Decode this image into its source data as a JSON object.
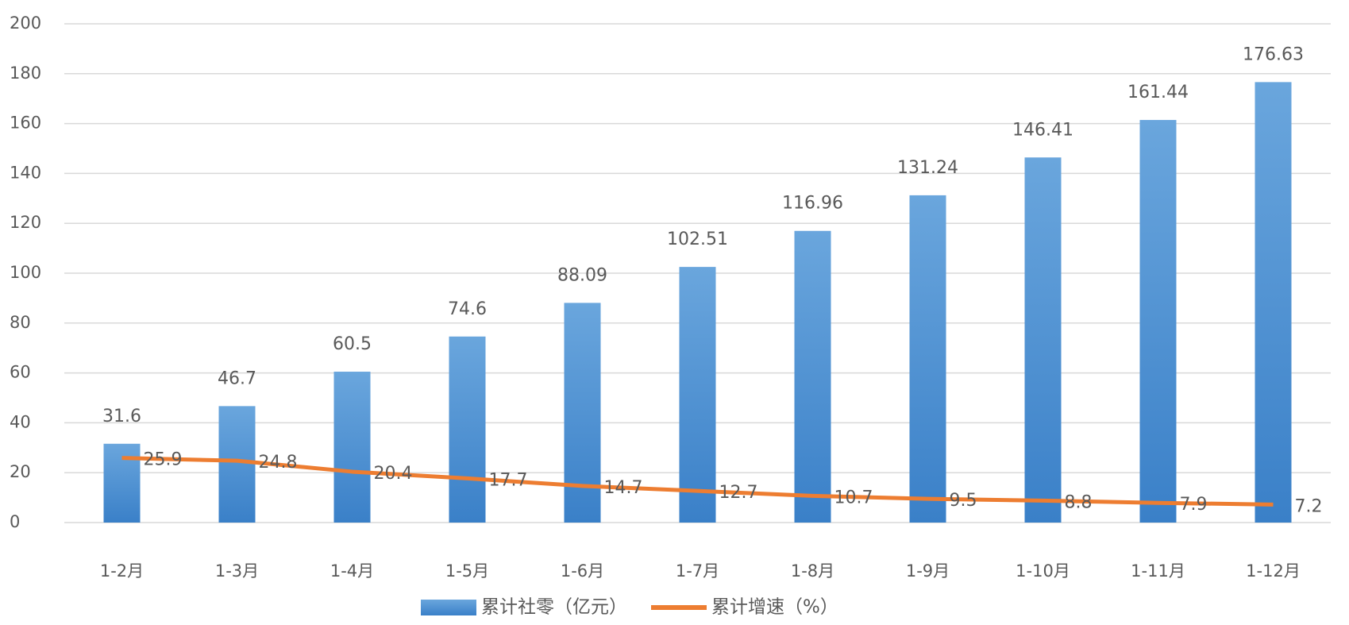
{
  "chart_data": {
    "type": "bar",
    "categories": [
      "1-2月",
      "1-3月",
      "1-4月",
      "1-5月",
      "1-6月",
      "1-7月",
      "1-8月",
      "1-9月",
      "1-10月",
      "1-11月",
      "1-12月"
    ],
    "series": [
      {
        "name": "累计社零（亿元）",
        "type": "bar",
        "color": "#4a8fd2",
        "values": [
          31.6,
          46.7,
          60.5,
          74.6,
          88.09,
          102.51,
          116.96,
          131.24,
          146.41,
          161.44,
          176.63
        ]
      },
      {
        "name": "累计增速（%）",
        "type": "line",
        "color": "#ed7d31",
        "values": [
          25.9,
          24.8,
          20.4,
          17.7,
          14.7,
          12.7,
          10.7,
          9.5,
          8.8,
          7.9,
          7.2
        ]
      }
    ],
    "ylim": [
      0,
      200
    ],
    "yticks": [
      0,
      20,
      40,
      60,
      80,
      100,
      120,
      140,
      160,
      180,
      200
    ],
    "grid": true,
    "legend": "bottom"
  }
}
